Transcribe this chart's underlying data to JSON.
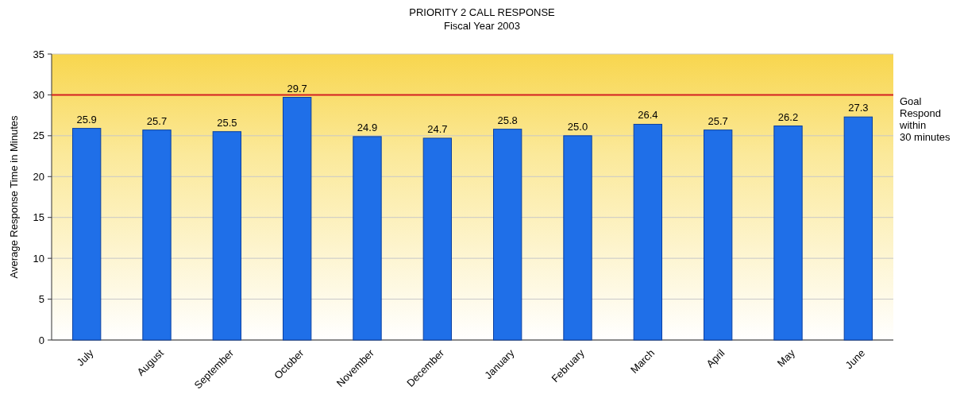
{
  "chart_data": {
    "type": "bar",
    "title": "PRIORITY 2 CALL RESPONSE",
    "subtitle": "Fiscal Year 2003",
    "ylabel": "Average Response Time in Minutes",
    "categories": [
      "July",
      "August",
      "September",
      "October",
      "November",
      "December",
      "January",
      "February",
      "March",
      "April",
      "May",
      "June"
    ],
    "values": [
      25.9,
      25.7,
      25.5,
      29.7,
      24.9,
      24.7,
      25.8,
      25.0,
      26.4,
      25.7,
      26.2,
      27.3
    ],
    "value_labels": [
      "25.9",
      "25.7",
      "25.5",
      "29.7",
      "24.9",
      "24.7",
      "25.8",
      "25.0",
      "26.4",
      "25.7",
      "26.2",
      "27.3"
    ],
    "color": "#1f6fe8",
    "ylim": [
      0,
      35
    ],
    "yticks": [
      0,
      5,
      10,
      15,
      20,
      25,
      30,
      35
    ],
    "grid": "y",
    "ref_lines": [
      {
        "axis": "y",
        "value": 30,
        "label": "Goal\nRespond\nwithin\n30 minutes",
        "color": "#d42020"
      }
    ]
  }
}
